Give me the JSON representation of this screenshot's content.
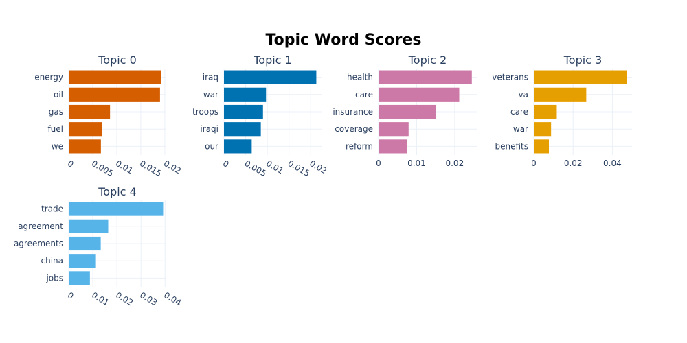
{
  "title": "Topic Word Scores",
  "chart_data": [
    {
      "type": "bar",
      "orientation": "horizontal",
      "title": "Topic 0",
      "color": "#D55E00",
      "categories": [
        "energy",
        "oil",
        "gas",
        "fuel",
        "we"
      ],
      "values": [
        0.0192,
        0.019,
        0.0086,
        0.007,
        0.0067
      ],
      "xticks": [
        0,
        0.005,
        0.01,
        0.015,
        0.02
      ],
      "xtick_labels": [
        "0",
        "0.005",
        "0.01",
        "0.015",
        "0.02"
      ],
      "xlim": [
        0,
        0.0203
      ],
      "tick_rotation": 30
    },
    {
      "type": "bar",
      "orientation": "horizontal",
      "title": "Topic 1",
      "color": "#0072B2",
      "categories": [
        "iraq",
        "war",
        "troops",
        "iraqi",
        "our"
      ],
      "values": [
        0.0213,
        0.0097,
        0.009,
        0.0085,
        0.0064
      ],
      "xticks": [
        0,
        0.005,
        0.01,
        0.015,
        0.02
      ],
      "xtick_labels": [
        "0",
        "0.005",
        "0.01",
        "0.015",
        "0.02"
      ],
      "xlim": [
        0,
        0.0225
      ],
      "tick_rotation": 30
    },
    {
      "type": "bar",
      "orientation": "horizontal",
      "title": "Topic 2",
      "color": "#CC79A7",
      "categories": [
        "health",
        "care",
        "insurance",
        "coverage",
        "reform"
      ],
      "values": [
        0.0245,
        0.0212,
        0.0151,
        0.0079,
        0.0075
      ],
      "xticks": [
        0,
        0.01,
        0.02
      ],
      "xtick_labels": [
        "0",
        "0.01",
        "0.02"
      ],
      "xlim": [
        0,
        0.0258
      ],
      "tick_rotation": 0
    },
    {
      "type": "bar",
      "orientation": "horizontal",
      "title": "Topic 3",
      "color": "#E69F00",
      "categories": [
        "veterans",
        "va",
        "care",
        "war",
        "benefits"
      ],
      "values": [
        0.0475,
        0.0267,
        0.0117,
        0.0088,
        0.0077
      ],
      "xticks": [
        0,
        0.02,
        0.04
      ],
      "xtick_labels": [
        "0",
        "0.02",
        "0.04"
      ],
      "xlim": [
        0,
        0.05
      ],
      "tick_rotation": 0
    },
    {
      "type": "bar",
      "orientation": "horizontal",
      "title": "Topic 4",
      "color": "#56B4E9",
      "categories": [
        "trade",
        "agreement",
        "agreements",
        "china",
        "jobs"
      ],
      "values": [
        0.0392,
        0.0164,
        0.0133,
        0.0113,
        0.0088
      ],
      "xticks": [
        0,
        0.01,
        0.02,
        0.03,
        0.04
      ],
      "xtick_labels": [
        "0",
        "0.01",
        "0.02",
        "0.03",
        "0.04"
      ],
      "xlim": [
        0,
        0.0405
      ],
      "tick_rotation": 30
    }
  ]
}
